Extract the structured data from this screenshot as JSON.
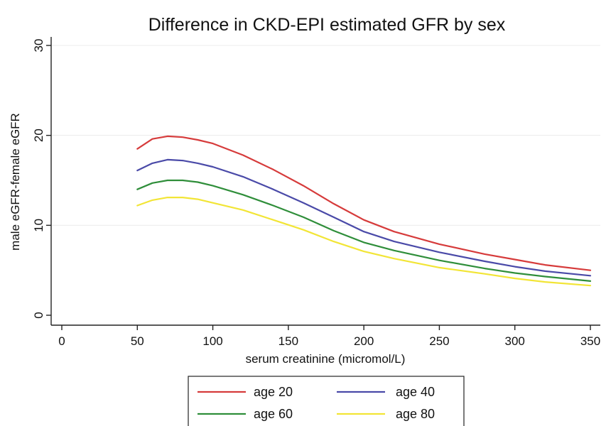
{
  "chart_data": {
    "type": "line",
    "title": "Difference in CKD-EPI estimated GFR by sex",
    "xlabel": "serum creatinine (micromol/L)",
    "ylabel": "male eGFR-female eGFR",
    "xlim": [
      0,
      350
    ],
    "ylim": [
      0,
      30
    ],
    "xticks": [
      0,
      50,
      100,
      150,
      200,
      250,
      300,
      350
    ],
    "yticks": [
      0,
      10,
      20,
      30
    ],
    "grid": true,
    "legend_position": "bottom",
    "x": [
      50,
      60,
      70,
      80,
      90,
      100,
      120,
      140,
      160,
      180,
      200,
      220,
      250,
      280,
      300,
      320,
      350
    ],
    "series": [
      {
        "name": "age 20",
        "color": "#d63b3b",
        "values": [
          18.5,
          19.6,
          19.9,
          19.8,
          19.5,
          19.1,
          17.8,
          16.2,
          14.4,
          12.4,
          10.6,
          9.3,
          7.9,
          6.8,
          6.2,
          5.6,
          5.0
        ]
      },
      {
        "name": "age 40",
        "color": "#4a4aa8",
        "values": [
          16.1,
          16.9,
          17.3,
          17.2,
          16.9,
          16.5,
          15.4,
          14.0,
          12.5,
          10.9,
          9.3,
          8.2,
          7.0,
          6.0,
          5.4,
          4.9,
          4.4
        ]
      },
      {
        "name": "age 60",
        "color": "#2f8e3a",
        "values": [
          14.0,
          14.7,
          15.0,
          15.0,
          14.8,
          14.4,
          13.4,
          12.2,
          10.9,
          9.4,
          8.1,
          7.2,
          6.1,
          5.2,
          4.7,
          4.3,
          3.8
        ]
      },
      {
        "name": "age 80",
        "color": "#f2e536",
        "values": [
          12.2,
          12.8,
          13.1,
          13.1,
          12.9,
          12.5,
          11.7,
          10.6,
          9.5,
          8.2,
          7.1,
          6.3,
          5.3,
          4.6,
          4.1,
          3.7,
          3.3
        ]
      }
    ]
  }
}
